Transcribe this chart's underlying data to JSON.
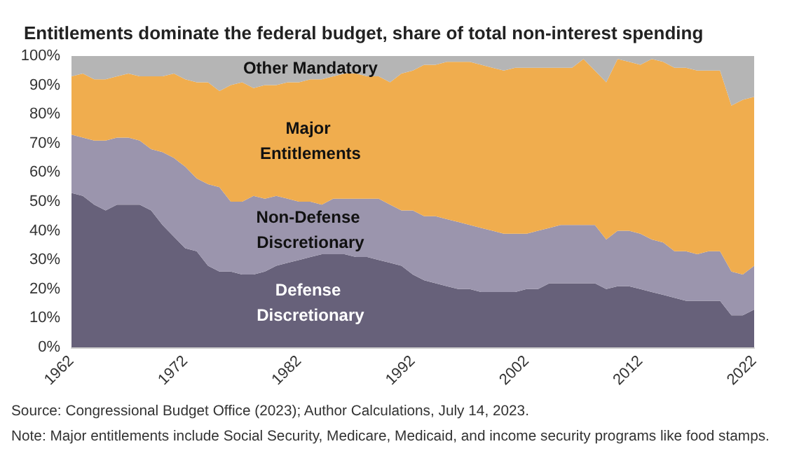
{
  "chart_data": {
    "type": "area",
    "title": "Entitlements dominate the federal budget, share of total non-interest spending",
    "stacked": true,
    "legend": false,
    "grid": false,
    "x": [
      1962,
      1963,
      1964,
      1965,
      1966,
      1967,
      1968,
      1969,
      1970,
      1971,
      1972,
      1973,
      1974,
      1975,
      1976,
      1977,
      1978,
      1979,
      1980,
      1981,
      1982,
      1983,
      1984,
      1985,
      1986,
      1987,
      1988,
      1989,
      1990,
      1991,
      1992,
      1993,
      1994,
      1995,
      1996,
      1997,
      1998,
      1999,
      2000,
      2001,
      2002,
      2003,
      2004,
      2005,
      2006,
      2007,
      2008,
      2009,
      2010,
      2011,
      2012,
      2013,
      2014,
      2015,
      2016,
      2017,
      2018,
      2019,
      2020,
      2021,
      2022
    ],
    "xlim": [
      1962,
      2022
    ],
    "xticks": [
      1962,
      1972,
      1982,
      1992,
      2002,
      2012,
      2022
    ],
    "ylim": [
      0,
      100
    ],
    "yticks": [
      {
        "value": 0,
        "label": "0%"
      },
      {
        "value": 10,
        "label": "10%"
      },
      {
        "value": 20,
        "label": "20%"
      },
      {
        "value": 30,
        "label": "30%"
      },
      {
        "value": 40,
        "label": "40%"
      },
      {
        "value": 50,
        "label": "50%"
      },
      {
        "value": 60,
        "label": "60%"
      },
      {
        "value": 70,
        "label": "70%"
      },
      {
        "value": 80,
        "label": "80%"
      },
      {
        "value": 90,
        "label": "90%"
      },
      {
        "value": 100,
        "label": "100%"
      }
    ],
    "series": [
      {
        "name": "Defense Discretionary",
        "color": "#67617a",
        "values": [
          53,
          52,
          49,
          47,
          49,
          49,
          49,
          47,
          42,
          38,
          34,
          33,
          28,
          26,
          26,
          25,
          25,
          26,
          28,
          29,
          30,
          31,
          32,
          32,
          32,
          31,
          31,
          30,
          29,
          28,
          25,
          23,
          22,
          21,
          20,
          20,
          19,
          19,
          19,
          19,
          20,
          20,
          22,
          22,
          22,
          22,
          22,
          20,
          21,
          21,
          20,
          19,
          18,
          17,
          16,
          16,
          16,
          16,
          11,
          11,
          13
        ]
      },
      {
        "name": "Non-Defense Discretionary",
        "color": "#9b95ad",
        "values": [
          20,
          20,
          22,
          24,
          23,
          23,
          22,
          21,
          25,
          27,
          28,
          25,
          28,
          29,
          24,
          25,
          27,
          25,
          24,
          22,
          20,
          19,
          17,
          19,
          19,
          20,
          20,
          21,
          20,
          19,
          22,
          22,
          23,
          23,
          23,
          22,
          22,
          21,
          20,
          20,
          19,
          20,
          19,
          20,
          20,
          20,
          20,
          17,
          19,
          19,
          19,
          18,
          18,
          16,
          17,
          16,
          17,
          17,
          15,
          14,
          15
        ]
      },
      {
        "name": "Major Entitlements",
        "color": "#f0ad4e",
        "values": [
          20,
          22,
          21,
          21,
          21,
          22,
          22,
          25,
          26,
          29,
          30,
          33,
          35,
          33,
          40,
          41,
          37,
          39,
          38,
          40,
          41,
          42,
          43,
          42,
          43,
          43,
          42,
          42,
          42,
          47,
          48,
          52,
          52,
          54,
          55,
          56,
          56,
          56,
          56,
          57,
          57,
          56,
          55,
          54,
          54,
          57,
          53,
          54,
          59,
          58,
          58,
          62,
          62,
          63,
          63,
          63,
          62,
          62,
          57,
          60,
          58
        ]
      },
      {
        "name": "Other Mandatory",
        "color": "#b5b5b5",
        "values": [
          7,
          6,
          8,
          8,
          7,
          6,
          7,
          7,
          7,
          6,
          8,
          9,
          9,
          12,
          10,
          9,
          11,
          10,
          10,
          9,
          9,
          8,
          8,
          7,
          6,
          6,
          7,
          7,
          9,
          6,
          5,
          3,
          3,
          2,
          2,
          2,
          3,
          4,
          5,
          4,
          4,
          4,
          4,
          4,
          4,
          1,
          5,
          9,
          1,
          2,
          3,
          1,
          2,
          4,
          4,
          5,
          5,
          5,
          17,
          15,
          14
        ]
      }
    ],
    "annotations": [
      "Source: Congressional Budget Office (2023); Author Calculations, July 14, 2023.",
      "Note: Major entitlements include Social Security, Medicare, Medicaid, and income security programs like food stamps."
    ]
  }
}
